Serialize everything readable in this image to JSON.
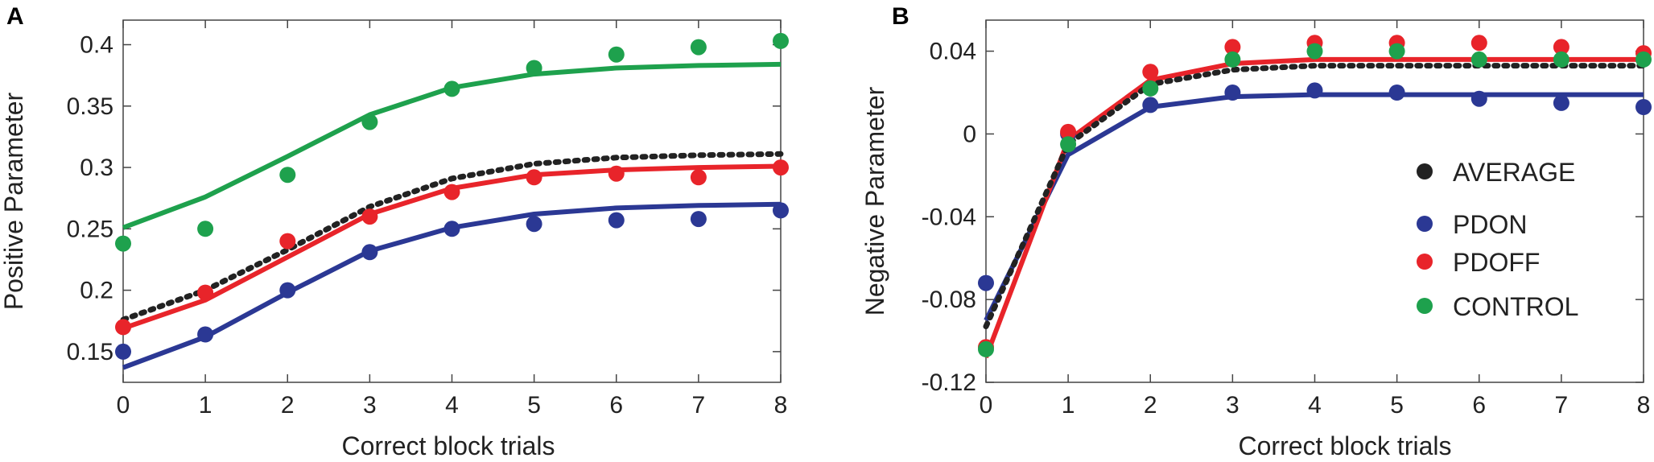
{
  "chart_data": [
    {
      "panel_label": "A",
      "type": "line",
      "xlabel": "Correct block trials",
      "ylabel": "Positive Parameter",
      "xlim": [
        0,
        8
      ],
      "ylim": [
        0.125,
        0.42
      ],
      "x_ticks": [
        0,
        1,
        2,
        3,
        4,
        5,
        6,
        7,
        8
      ],
      "y_ticks": [
        0.15,
        0.2,
        0.25,
        0.3,
        0.35,
        0.4
      ],
      "y_tick_labels": [
        "0.15",
        "0.2",
        "0.25",
        "0.3",
        "0.35",
        "0.4"
      ],
      "x": [
        0,
        1,
        2,
        3,
        4,
        5,
        6,
        7,
        8
      ],
      "series": [
        {
          "name": "AVERAGE",
          "color": "#222222",
          "style": "dotted",
          "fit": [
            0.176,
            0.2,
            0.233,
            0.268,
            0.291,
            0.303,
            0.308,
            0.31,
            0.311
          ],
          "points": []
        },
        {
          "name": "PDON",
          "color": "#2b3894",
          "style": "solid",
          "fit": [
            0.137,
            0.162,
            0.198,
            0.232,
            0.251,
            0.262,
            0.267,
            0.269,
            0.27
          ],
          "points": [
            0.15,
            0.164,
            0.2,
            0.231,
            0.25,
            0.254,
            0.257,
            0.258,
            0.265
          ]
        },
        {
          "name": "PDOFF",
          "color": "#e8242a",
          "style": "solid",
          "fit": [
            0.169,
            0.192,
            0.227,
            0.262,
            0.283,
            0.294,
            0.298,
            0.3,
            0.301
          ],
          "points": [
            0.17,
            0.198,
            0.24,
            0.26,
            0.28,
            0.292,
            0.295,
            0.292,
            0.3
          ]
        },
        {
          "name": "CONTROL",
          "color": "#1ea14d",
          "style": "solid",
          "fit": [
            0.251,
            0.276,
            0.309,
            0.343,
            0.365,
            0.376,
            0.381,
            0.383,
            0.384
          ],
          "points": [
            0.238,
            0.25,
            0.294,
            0.337,
            0.364,
            0.381,
            0.392,
            0.398,
            0.403
          ]
        }
      ]
    },
    {
      "panel_label": "B",
      "type": "line",
      "xlabel": "Correct block trials",
      "ylabel": "Negative Parameter",
      "xlim": [
        0,
        8
      ],
      "ylim": [
        -0.12,
        0.055
      ],
      "x_ticks": [
        0,
        1,
        2,
        3,
        4,
        5,
        6,
        7,
        8
      ],
      "y_ticks": [
        -0.12,
        -0.08,
        -0.04,
        0,
        0.04
      ],
      "y_tick_labels": [
        "-0.12",
        "-0.08",
        "-0.04",
        "0",
        "0.04"
      ],
      "x": [
        0,
        1,
        2,
        3,
        4,
        5,
        6,
        7,
        8
      ],
      "legend": {
        "position": "right",
        "entries": [
          "AVERAGE",
          "PDON",
          "PDOFF",
          "CONTROL"
        ]
      },
      "series": [
        {
          "name": "AVERAGE",
          "color": "#222222",
          "style": "dotted",
          "fit": [
            -0.093,
            -0.005,
            0.024,
            0.031,
            0.033,
            0.033,
            0.033,
            0.033,
            0.033
          ],
          "points": []
        },
        {
          "name": "PDON",
          "color": "#2b3894",
          "style": "solid",
          "fit": [
            -0.09,
            -0.01,
            0.013,
            0.018,
            0.019,
            0.019,
            0.019,
            0.019,
            0.019
          ],
          "points": [
            -0.072,
            0.0,
            0.014,
            0.02,
            0.021,
            0.02,
            0.017,
            0.015,
            0.013
          ]
        },
        {
          "name": "PDOFF",
          "color": "#e8242a",
          "style": "solid",
          "fit": [
            -0.108,
            -0.003,
            0.026,
            0.034,
            0.036,
            0.036,
            0.036,
            0.036,
            0.036
          ],
          "points": [
            -0.103,
            0.001,
            0.03,
            0.042,
            0.044,
            0.044,
            0.044,
            0.042,
            0.039
          ]
        },
        {
          "name": "CONTROL",
          "color": "#1ea14d",
          "style": "solid",
          "fit": [],
          "points": [
            -0.104,
            -0.005,
            0.022,
            0.036,
            0.04,
            0.04,
            0.036,
            0.036,
            0.036
          ]
        }
      ]
    }
  ]
}
